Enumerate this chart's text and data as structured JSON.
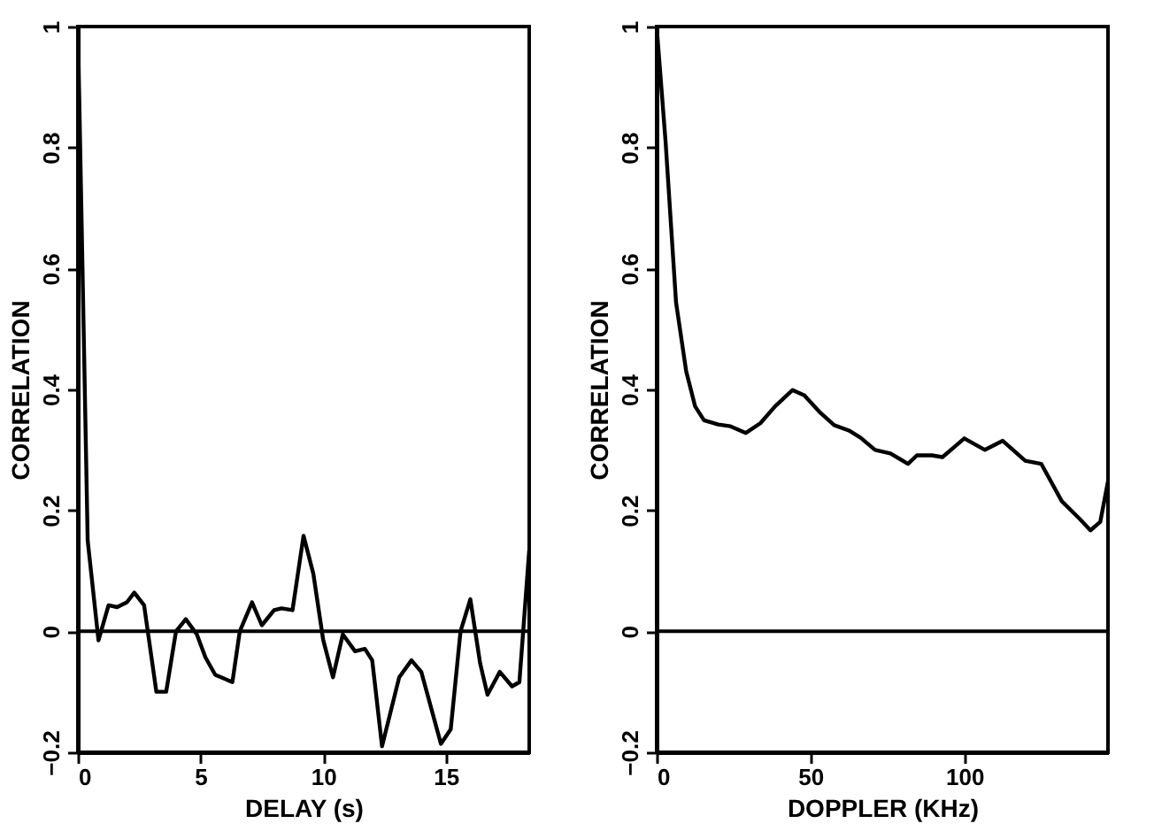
{
  "chart_data": [
    {
      "type": "line",
      "xlabel": "DELAY (s)",
      "ylabel": "CORRELATION",
      "xlim": [
        0,
        18.4
      ],
      "ylim": [
        -0.2,
        1
      ],
      "xticks": [
        0,
        5,
        10,
        15
      ],
      "yticks": [
        -0.2,
        0,
        0.2,
        0.4,
        0.6,
        0.8,
        1
      ],
      "grid": false,
      "ref_lines": [
        {
          "axis": "y",
          "value": 0,
          "color": "#000000"
        }
      ],
      "series": [
        {
          "color": "#000000",
          "x": [
            0,
            0.4,
            0.84,
            1.25,
            1.6,
            2.0,
            2.3,
            2.7,
            3.2,
            3.6,
            4.0,
            4.4,
            4.85,
            5.2,
            5.6,
            6.3,
            6.6,
            7.1,
            7.5,
            8.0,
            8.3,
            8.75,
            9.2,
            9.6,
            10.0,
            10.4,
            10.8,
            11.3,
            11.7,
            12.0,
            12.4,
            13.1,
            13.6,
            14.0,
            14.8,
            15.2,
            15.6,
            16.0,
            16.4,
            16.7,
            17.2,
            17.7,
            18.0,
            18.4
          ],
          "values": [
            1.0,
            0.15,
            -0.015,
            0.043,
            0.04,
            0.048,
            0.064,
            0.043,
            -0.1,
            -0.1,
            0,
            0.02,
            -0.005,
            -0.043,
            -0.072,
            -0.084,
            0,
            0.048,
            0.01,
            0.035,
            0.038,
            0.035,
            0.158,
            0.095,
            -0.014,
            -0.076,
            -0.005,
            -0.033,
            -0.029,
            -0.048,
            -0.19,
            -0.076,
            -0.048,
            -0.067,
            -0.186,
            -0.162,
            0,
            0.053,
            -0.053,
            -0.105,
            -0.067,
            -0.091,
            -0.084,
            0.134
          ]
        }
      ]
    },
    {
      "type": "line",
      "xlabel": "DOPPLER (KHz)",
      "ylabel": "CORRELATION",
      "xlim": [
        0,
        146.7
      ],
      "ylim": [
        -0.2,
        1
      ],
      "xticks": [
        0,
        50,
        100
      ],
      "yticks": [
        -0.2,
        0,
        0.2,
        0.4,
        0.6,
        0.8,
        1
      ],
      "grid": false,
      "ref_lines": [
        {
          "axis": "y",
          "value": 0,
          "color": "#000000"
        }
      ],
      "series": [
        {
          "color": "#000000",
          "x": [
            0,
            2.9,
            6.3,
            9.6,
            12.5,
            15.4,
            20,
            24,
            29,
            33.7,
            38.5,
            44.2,
            48,
            52.9,
            57.7,
            62.5,
            66.3,
            71,
            76,
            81.7,
            84.6,
            89.4,
            92.9,
            100,
            106.7,
            112.5,
            119.8,
            125,
            131.7,
            137.5,
            141,
            144.2,
            146.7
          ],
          "values": [
            1.0,
            0.81,
            0.544,
            0.43,
            0.372,
            0.349,
            0.342,
            0.339,
            0.328,
            0.344,
            0.372,
            0.399,
            0.39,
            0.363,
            0.341,
            0.332,
            0.32,
            0.3,
            0.294,
            0.277,
            0.291,
            0.291,
            0.288,
            0.319,
            0.3,
            0.315,
            0.282,
            0.277,
            0.215,
            0.186,
            0.167,
            0.181,
            0.248
          ]
        }
      ]
    }
  ]
}
